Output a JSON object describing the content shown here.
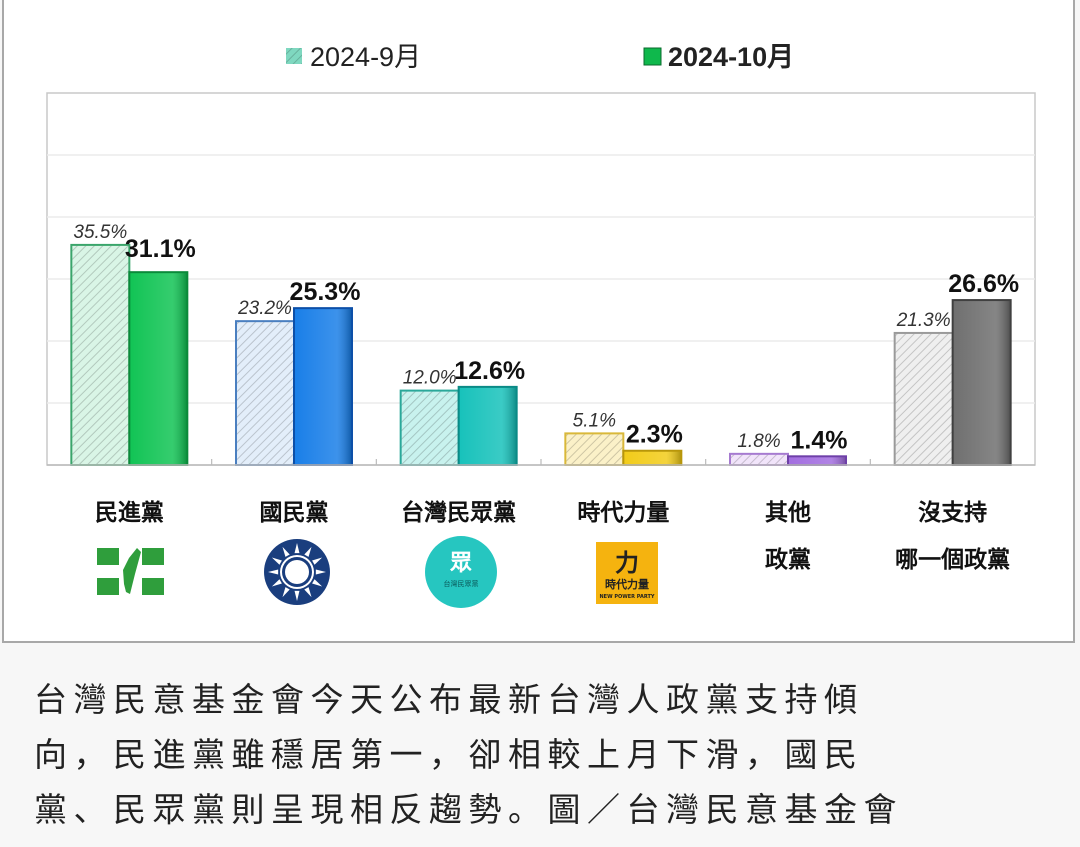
{
  "chart_data": {
    "type": "bar",
    "title": "",
    "xlabel": "",
    "ylabel": "",
    "ylim": [
      0,
      60
    ],
    "grid": true,
    "legend_position": "top",
    "categories": [
      [
        "民進黨"
      ],
      [
        "國民黨"
      ],
      [
        "台灣民眾黨"
      ],
      [
        "時代力量"
      ],
      [
        "其他",
        "政黨"
      ],
      [
        "沒支持",
        "哪一個政黨"
      ]
    ],
    "series": [
      {
        "name": "2024-9月",
        "values": [
          35.5,
          23.2,
          12.0,
          5.1,
          1.8,
          21.3
        ],
        "labels": [
          "35.5%",
          "23.2%",
          "12.0%",
          "5.1%",
          "1.8%",
          "21.3%"
        ],
        "style": "hatched"
      },
      {
        "name": "2024-10月",
        "values": [
          31.1,
          25.3,
          12.6,
          2.3,
          1.4,
          26.6
        ],
        "labels": [
          "31.1%",
          "25.3%",
          "12.6%",
          "2.3%",
          "1.4%",
          "26.6%"
        ],
        "style": "solid"
      }
    ],
    "colors": [
      {
        "prev_fill": "#d9f5e6",
        "prev_stroke": "#3aa56b",
        "cur": "#12c455",
        "cur_dark": "#0a8a3a"
      },
      {
        "prev_fill": "#e3eefa",
        "prev_stroke": "#4a7fc0",
        "cur": "#1a7fe8",
        "cur_dark": "#0c4fa8"
      },
      {
        "prev_fill": "#c8f2ee",
        "prev_stroke": "#2aa89a",
        "cur": "#18c2bb",
        "cur_dark": "#0a8a86"
      },
      {
        "prev_fill": "#fbf1c8",
        "prev_stroke": "#d9b83a",
        "cur": "#f2cc1a",
        "cur_dark": "#b8960a"
      },
      {
        "prev_fill": "#f1e4fa",
        "prev_stroke": "#a67ad0",
        "cur": "#a36ee0",
        "cur_dark": "#6e40a8"
      },
      {
        "prev_fill": "#efefef",
        "prev_stroke": "#9a9a9a",
        "cur": "#707070",
        "cur_dark": "#404040"
      }
    ],
    "legend_swatch_prev": "#7fd8c0",
    "legend_swatch_cur": "#0fb84c"
  },
  "logos": {
    "dpp": {
      "color": "#2f9e3c"
    },
    "kmt": {
      "color": "#1a3e7e"
    },
    "tpp": {
      "color": "#26c6c0",
      "char": "眾",
      "sub": "台灣民眾黨"
    },
    "npp": {
      "color": "#f5b30f",
      "char": "力",
      "sub": "時代力量",
      "sub2": "NEW POWER PARTY"
    }
  },
  "caption": {
    "lines": [
      "台灣民意基金會今天公布最新台灣人政黨支持傾",
      "向，民進黨雖穩居第一，卻相較上月下滑，國民",
      "黨、民眾黨則呈現相反趨勢。圖／台灣民意基金會"
    ]
  }
}
